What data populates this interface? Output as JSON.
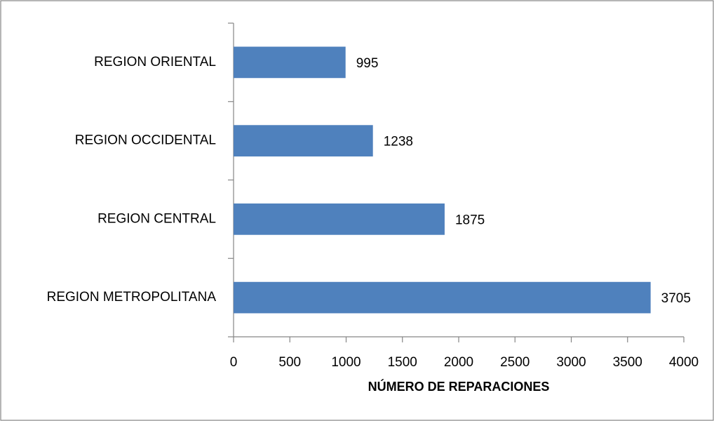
{
  "chart_data": {
    "type": "bar",
    "orientation": "horizontal",
    "categories": [
      "REGION ORIENTAL",
      "REGION OCCIDENTAL",
      "REGION CENTRAL",
      "REGION METROPOLITANA"
    ],
    "values": [
      995,
      1238,
      1875,
      3705
    ],
    "color": "#4f81bd",
    "x_label": "NÚMERO DE REPARACIONES",
    "xlim": [
      0,
      4000
    ],
    "xticks": [
      0,
      500,
      1000,
      1500,
      2000,
      2500,
      3000,
      3500,
      4000
    ],
    "grid": false
  }
}
